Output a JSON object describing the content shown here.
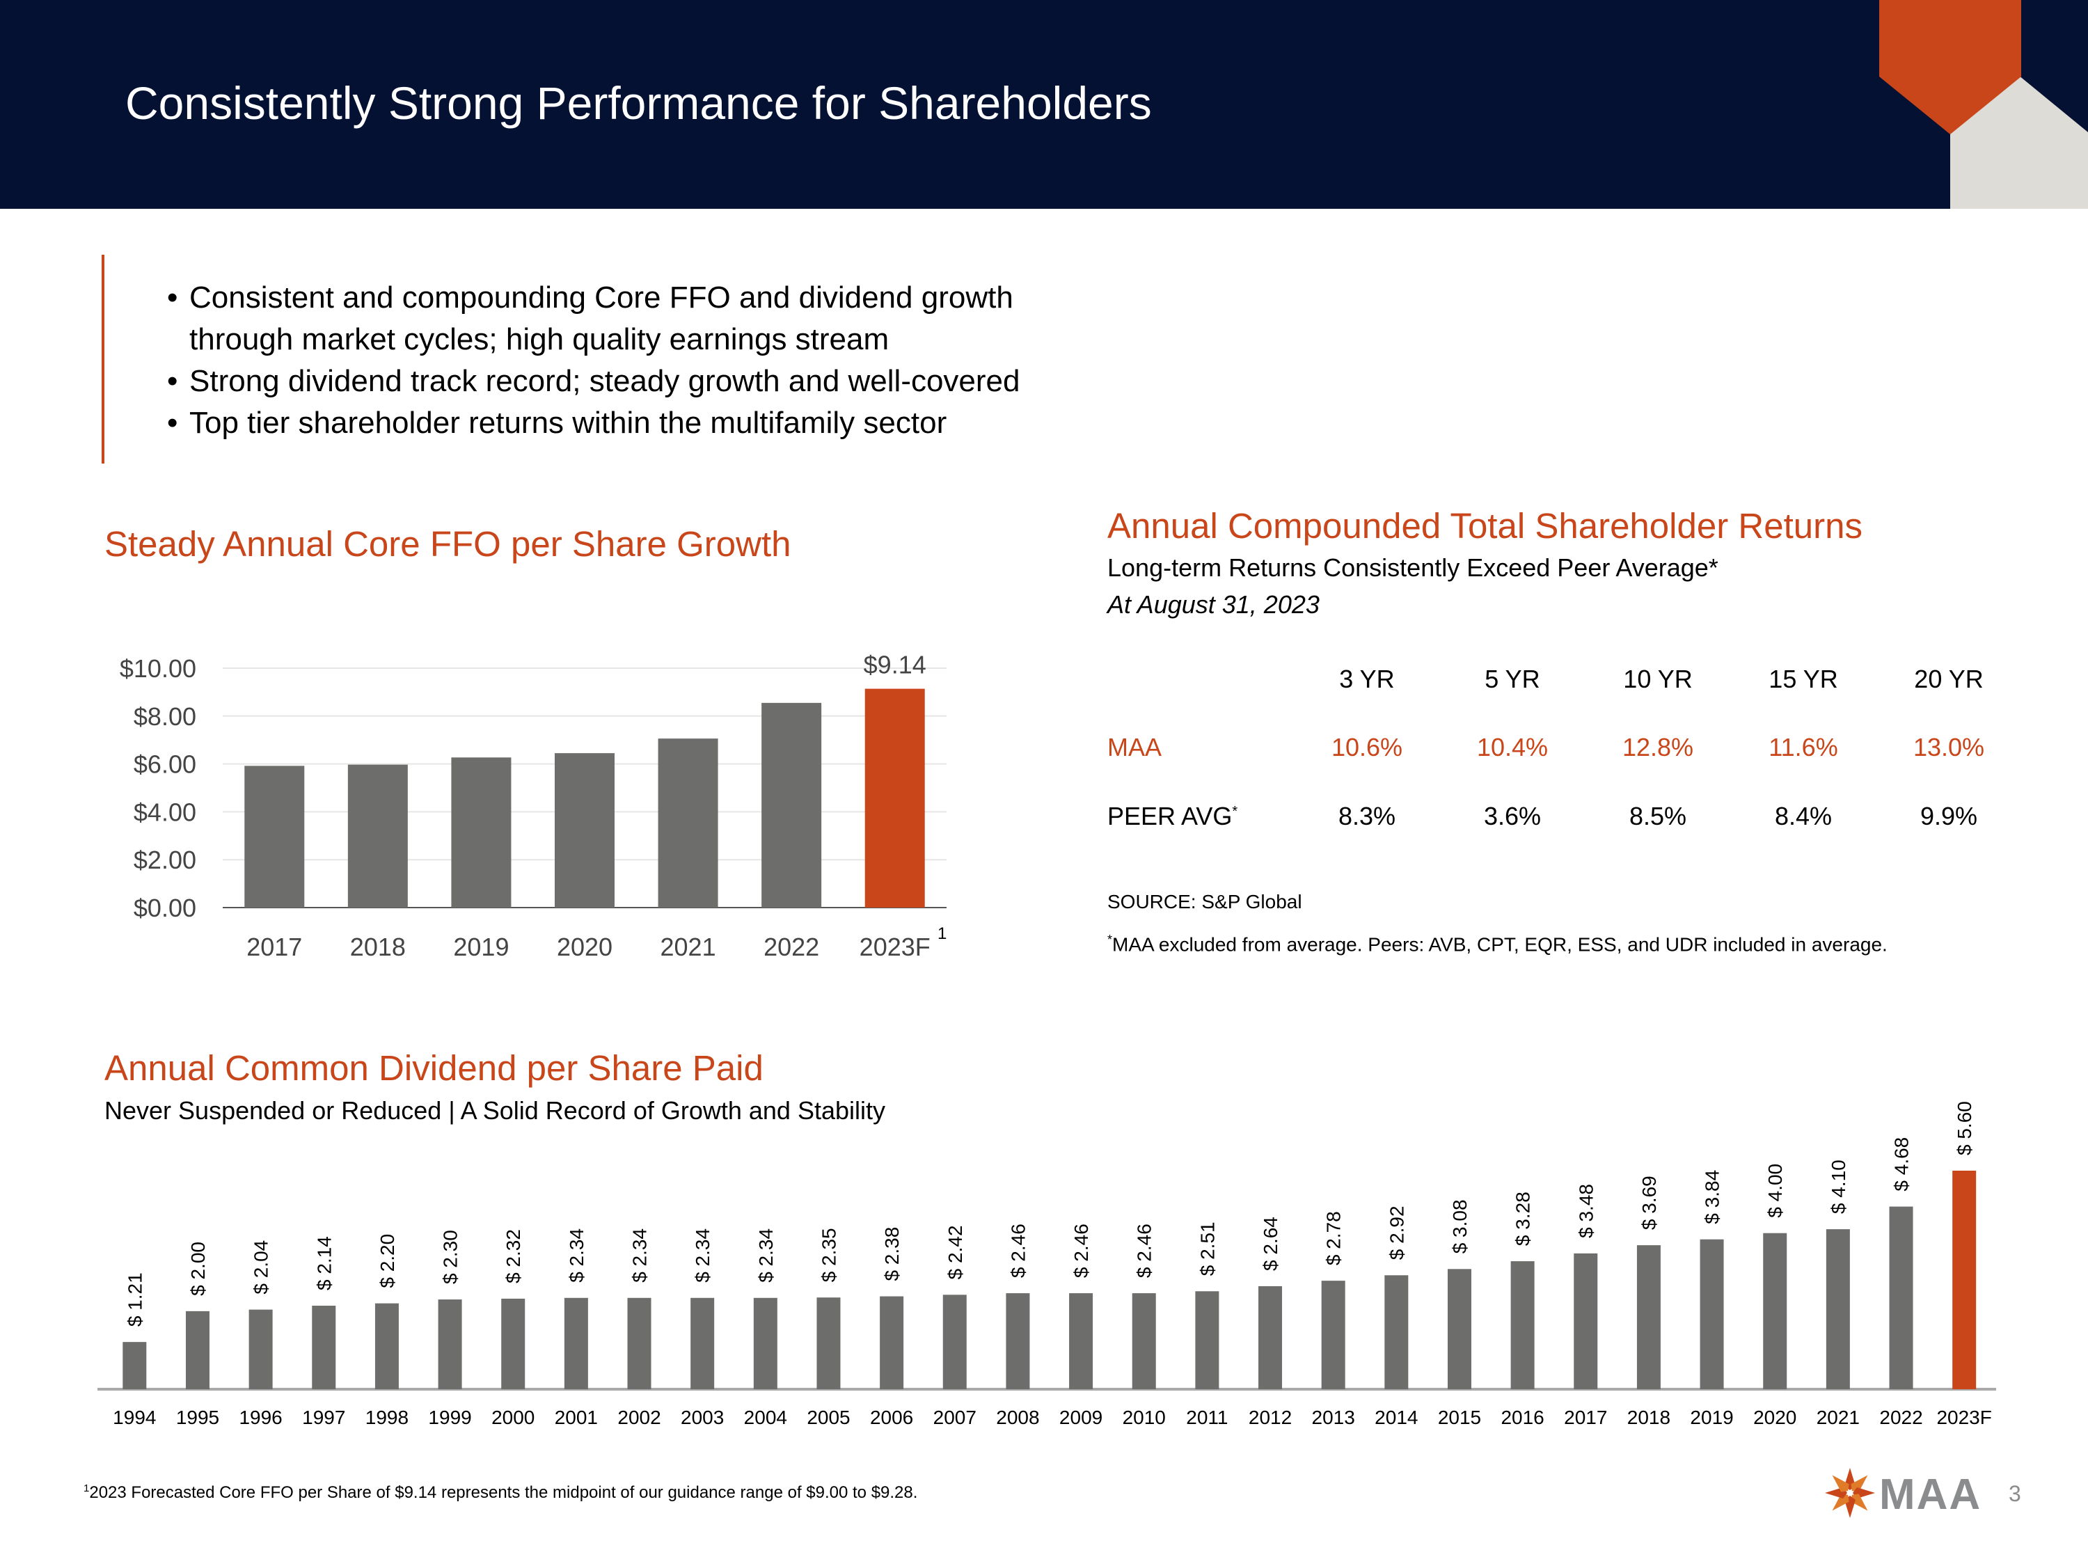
{
  "header": {
    "title": "Consistently Strong Performance for Shareholders"
  },
  "bullets": [
    "Consistent and compounding Core FFO and dividend growth",
    "through market cycles; high quality earnings stream",
    "Strong dividend track record; steady growth and well-covered",
    "Top tier shareholder returns within the multifamily sector"
  ],
  "bullet_mark": "•",
  "colors": {
    "navy": "#041133",
    "orange": "#c8461a",
    "gray": "#6d6e6b",
    "tan": "#dedcd6"
  },
  "chart_data": [
    {
      "type": "bar",
      "title": "Steady Annual Core FFO per Share Growth",
      "categories": [
        "2017",
        "2018",
        "2019",
        "2020",
        "2021",
        "2022",
        "2023F"
      ],
      "values": [
        5.92,
        5.97,
        6.27,
        6.45,
        7.06,
        8.55,
        9.14
      ],
      "highlight_label": "$9.14",
      "footnote_marker": "1",
      "yticks": [
        "$0.00",
        "$2.00",
        "$4.00",
        "$6.00",
        "$8.00",
        "$10.00"
      ],
      "ylim": [
        0,
        10
      ],
      "xlabel": "",
      "ylabel": ""
    },
    {
      "type": "bar",
      "title": "Annual Common Dividend per Share Paid",
      "subtitle": "Never Suspended or Reduced | A Solid Record of Growth and Stability",
      "categories": [
        "1994",
        "1995",
        "1996",
        "1997",
        "1998",
        "1999",
        "2000",
        "2001",
        "2002",
        "2003",
        "2004",
        "2005",
        "2006",
        "2007",
        "2008",
        "2009",
        "2010",
        "2011",
        "2012",
        "2013",
        "2014",
        "2015",
        "2016",
        "2017",
        "2018",
        "2019",
        "2020",
        "2021",
        "2022",
        "2023F"
      ],
      "values": [
        1.21,
        2.0,
        2.04,
        2.14,
        2.2,
        2.3,
        2.32,
        2.34,
        2.34,
        2.34,
        2.34,
        2.35,
        2.38,
        2.42,
        2.46,
        2.46,
        2.46,
        2.51,
        2.64,
        2.78,
        2.92,
        3.08,
        3.28,
        3.48,
        3.69,
        3.84,
        4.0,
        4.1,
        4.68,
        5.6
      ],
      "labels": [
        "$ 1.21",
        "$ 2.00",
        "$ 2.04",
        "$ 2.14",
        "$ 2.20",
        "$ 2.30",
        "$ 2.32",
        "$ 2.34",
        "$ 2.34",
        "$ 2.34",
        "$ 2.34",
        "$ 2.35",
        "$ 2.38",
        "$ 2.42",
        "$ 2.46",
        "$ 2.46",
        "$ 2.46",
        "$ 2.51",
        "$ 2.64",
        "$ 2.78",
        "$ 2.92",
        "$ 3.08",
        "$ 3.28",
        "$ 3.48",
        "$ 3.69",
        "$ 3.84",
        "$ 4.00",
        "$ 4.10",
        "$ 4.68",
        "$ 5.60"
      ],
      "ylim": [
        0,
        6
      ]
    },
    {
      "type": "table",
      "title": "Annual Compounded Total Shareholder Returns",
      "subtitle": "Long-term Returns Consistently Exceed Peer Average*",
      "date": "At August 31, 2023",
      "columns": [
        "3 YR",
        "5 YR",
        "10 YR",
        "15 YR",
        "20 YR"
      ],
      "rows": [
        {
          "name": "MAA",
          "values": [
            "10.6%",
            "10.4%",
            "12.8%",
            "11.6%",
            "13.0%"
          ]
        },
        {
          "name": "PEER AVG",
          "sup": "*",
          "values": [
            "8.3%",
            "3.6%",
            "8.5%",
            "8.4%",
            "9.9%"
          ]
        }
      ],
      "source": "SOURCE:  S&P Global",
      "note_marker": "*",
      "note": "MAA excluded from average.  Peers: AVB, CPT, EQR, ESS, and UDR included in average."
    }
  ],
  "footnote": {
    "marker": "1",
    "text": "2023 Forecasted Core FFO per Share of $9.14 represents the midpoint of our guidance range of $9.00 to $9.28."
  },
  "logo": {
    "text": "MAA"
  },
  "page_number": "3"
}
